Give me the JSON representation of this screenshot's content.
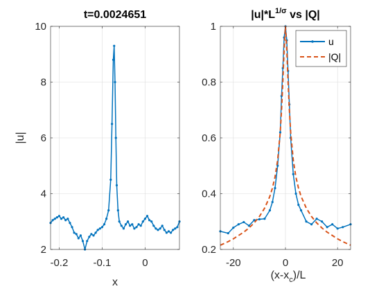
{
  "colors": {
    "series_u": "#0072BD",
    "series_q": "#D95319"
  },
  "chart_data": [
    {
      "type": "line",
      "title": "t=0.0024651",
      "xlabel": "x",
      "ylabel": "|u|",
      "xlim": [
        -0.22,
        0.08
      ],
      "ylim": [
        2,
        10
      ],
      "grid": true,
      "xticks": [
        -0.2,
        -0.1,
        0
      ],
      "xtick_labels": [
        "-0.2",
        "-0.1",
        "0"
      ],
      "yticks": [
        2,
        4,
        6,
        8,
        10
      ],
      "ytick_labels": [
        "2",
        "4",
        "6",
        "8",
        "10"
      ],
      "series": [
        {
          "color": "#0072BD",
          "marker": "dot",
          "x": [
            -0.22,
            -0.215,
            -0.21,
            -0.205,
            -0.2,
            -0.195,
            -0.19,
            -0.185,
            -0.18,
            -0.175,
            -0.17,
            -0.165,
            -0.16,
            -0.155,
            -0.15,
            -0.145,
            -0.14,
            -0.135,
            -0.13,
            -0.125,
            -0.12,
            -0.115,
            -0.11,
            -0.105,
            -0.1,
            -0.095,
            -0.09,
            -0.085,
            -0.08,
            -0.077,
            -0.074,
            -0.072,
            -0.07,
            -0.068,
            -0.066,
            -0.063,
            -0.06,
            -0.055,
            -0.05,
            -0.045,
            -0.04,
            -0.035,
            -0.03,
            -0.025,
            -0.02,
            -0.015,
            -0.01,
            -0.005,
            0,
            0.005,
            0.01,
            0.015,
            0.02,
            0.025,
            0.03,
            0.035,
            0.04,
            0.045,
            0.05,
            0.055,
            0.06,
            0.065,
            0.07,
            0.075,
            0.08
          ],
          "y": [
            2.95,
            3.05,
            3.1,
            3.15,
            3.2,
            3.1,
            3.15,
            3.05,
            3.1,
            2.95,
            2.8,
            2.6,
            2.55,
            2.4,
            2.5,
            2.3,
            2.0,
            2.3,
            2.45,
            2.55,
            2.5,
            2.6,
            2.7,
            2.75,
            2.8,
            2.9,
            3.1,
            3.4,
            4.5,
            6.5,
            8.8,
            9.3,
            8.0,
            6.0,
            4.3,
            3.4,
            3.0,
            2.85,
            2.75,
            2.9,
            3.0,
            2.85,
            2.9,
            2.75,
            2.8,
            2.9,
            2.85,
            3.0,
            3.1,
            3.2,
            3.05,
            3.0,
            2.85,
            2.75,
            2.7,
            2.75,
            2.85,
            2.7,
            2.6,
            2.65,
            2.6,
            2.7,
            2.75,
            2.8,
            3.0
          ]
        }
      ]
    },
    {
      "type": "line",
      "title_base": "|u|*L",
      "title_sup": "1/σ",
      "title_rest": " vs |Q|",
      "xlabel_main": "(x-x",
      "xlabel_sub": "c",
      "xlabel_rest": ")/L",
      "ylabel": "",
      "xlim": [
        -25,
        25
      ],
      "ylim": [
        0.2,
        1
      ],
      "grid": true,
      "xticks": [
        -20,
        0,
        20
      ],
      "xtick_labels": [
        "-20",
        "0",
        "20"
      ],
      "yticks": [
        0.2,
        0.4,
        0.6,
        0.8,
        1
      ],
      "ytick_labels": [
        "0.2",
        "0.4",
        "0.6",
        "0.8",
        "1"
      ],
      "legend_position": "top-right",
      "series": [
        {
          "name": "u",
          "color": "#0072BD",
          "style": "solid",
          "marker": "dot",
          "x": [
            -25,
            -22,
            -20,
            -18,
            -16,
            -14,
            -12,
            -10,
            -8,
            -6,
            -5,
            -4,
            -3,
            -2,
            -1.5,
            -1,
            -0.5,
            0,
            0.5,
            1,
            1.5,
            2,
            3,
            4,
            5,
            6,
            8,
            10,
            12,
            14,
            16,
            18,
            20,
            22,
            25
          ],
          "y": [
            0.265,
            0.258,
            0.278,
            0.29,
            0.298,
            0.285,
            0.305,
            0.308,
            0.31,
            0.34,
            0.37,
            0.42,
            0.5,
            0.62,
            0.75,
            0.85,
            0.96,
            1.0,
            0.95,
            0.84,
            0.72,
            0.6,
            0.47,
            0.4,
            0.36,
            0.34,
            0.3,
            0.29,
            0.31,
            0.3,
            0.28,
            0.29,
            0.275,
            0.28,
            0.29
          ]
        },
        {
          "name": "|Q|",
          "color": "#D95319",
          "style": "dashed",
          "x": [
            -25,
            -22,
            -20,
            -18,
            -16,
            -14,
            -12,
            -10,
            -8,
            -6,
            -5,
            -4,
            -3,
            -2,
            -1.5,
            -1,
            -0.5,
            0,
            0.5,
            1,
            1.5,
            2,
            3,
            4,
            5,
            6,
            8,
            10,
            12,
            14,
            16,
            18,
            20,
            22,
            25
          ],
          "y": [
            0.215,
            0.228,
            0.238,
            0.25,
            0.262,
            0.277,
            0.295,
            0.318,
            0.348,
            0.39,
            0.42,
            0.46,
            0.52,
            0.62,
            0.7,
            0.8,
            0.92,
            1.0,
            0.92,
            0.8,
            0.7,
            0.62,
            0.52,
            0.46,
            0.42,
            0.39,
            0.348,
            0.318,
            0.295,
            0.277,
            0.262,
            0.25,
            0.238,
            0.228,
            0.215
          ]
        }
      ]
    }
  ]
}
